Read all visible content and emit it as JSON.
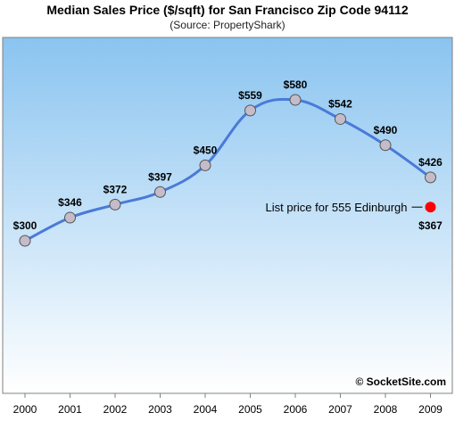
{
  "chart_data": {
    "type": "line",
    "title": "Median Sales Price ($/sqft) for San Francisco Zip Code 94112",
    "subtitle": "(Source: PropertyShark)",
    "categories": [
      "2000",
      "2001",
      "2002",
      "2003",
      "2004",
      "2005",
      "2006",
      "2007",
      "2008",
      "2009"
    ],
    "series": [
      {
        "values": [
          300,
          346,
          372,
          397,
          450,
          559,
          580,
          542,
          490,
          426
        ],
        "labels": [
          "$300",
          "$346",
          "$372",
          "$397",
          "$450",
          "$559",
          "$580",
          "$542",
          "$490",
          "$426"
        ],
        "color": "#4a7ad8"
      }
    ],
    "annotation": {
      "text": "List price for 555 Edinburgh",
      "x": "2009",
      "value": 367,
      "value_label": "$367",
      "color": "#ff0000"
    },
    "ylim": [
      0,
      700
    ],
    "grid": false,
    "xlabel": "",
    "ylabel": "",
    "watermark": "© SocketSite.com",
    "background_gradient": [
      "#ffffff",
      "#8ac4f0"
    ]
  }
}
